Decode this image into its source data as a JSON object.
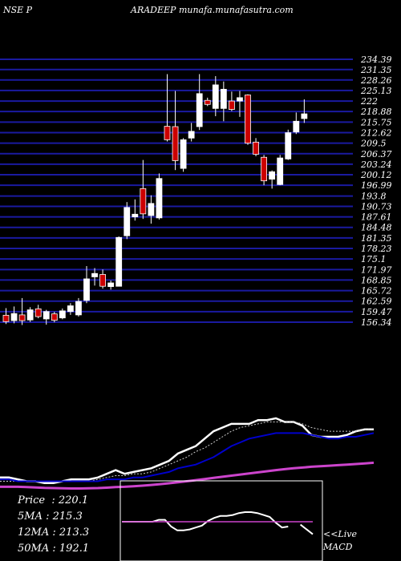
{
  "header": {
    "exchange": "NSE P",
    "site": "ARADEEP munafa.munafasutra.com"
  },
  "chart_data": [
    {
      "type": "candlestick",
      "title": "",
      "y_ticks": [
        234.39,
        231.35,
        228.26,
        225.13,
        222,
        218.88,
        215.75,
        212.62,
        209.5,
        206.37,
        203.24,
        200.12,
        196.99,
        193.8,
        190.73,
        187.61,
        184.48,
        181.35,
        178.23,
        175.1,
        171.97,
        168.85,
        165.72,
        162.59,
        159.47,
        156.34
      ],
      "y_tick_labels": [
        "234.39",
        "231.35",
        "228.26",
        "225.13",
        "222",
        "218.88",
        "215.75",
        "212.62",
        "209.5",
        "206.37",
        "203.24",
        "200.12",
        "196.99",
        "193.8",
        "190.73",
        "187.61",
        "184.48",
        "181.35",
        "178.23",
        "175.1",
        "171.97",
        "168.85",
        "165.72",
        "162.59",
        "159.47",
        "156.34"
      ],
      "ylim": [
        156.34,
        234.39
      ],
      "candles": [
        {
          "o": 158.4,
          "h": 160.5,
          "l": 155.8,
          "c": 156.5
        },
        {
          "o": 156.8,
          "h": 161.0,
          "l": 156.0,
          "c": 158.9
        },
        {
          "o": 158.5,
          "h": 163.5,
          "l": 155.5,
          "c": 156.8
        },
        {
          "o": 157.0,
          "h": 160.8,
          "l": 156.4,
          "c": 160.0
        },
        {
          "o": 160.3,
          "h": 161.5,
          "l": 157.5,
          "c": 158.0
        },
        {
          "o": 157.3,
          "h": 160.0,
          "l": 155.6,
          "c": 159.5
        },
        {
          "o": 158.8,
          "h": 159.4,
          "l": 156.3,
          "c": 156.9
        },
        {
          "o": 157.6,
          "h": 160.4,
          "l": 157.2,
          "c": 159.7
        },
        {
          "o": 159.5,
          "h": 162.0,
          "l": 158.5,
          "c": 161.2
        },
        {
          "o": 158.5,
          "h": 163.5,
          "l": 158.0,
          "c": 162.5
        },
        {
          "o": 162.8,
          "h": 173.0,
          "l": 162.0,
          "c": 169.2
        },
        {
          "o": 169.8,
          "h": 172.4,
          "l": 167.2,
          "c": 170.8
        },
        {
          "o": 170.5,
          "h": 172.0,
          "l": 166.3,
          "c": 167.0
        },
        {
          "o": 166.9,
          "h": 168.7,
          "l": 166.0,
          "c": 168.0
        },
        {
          "o": 167.0,
          "h": 181.8,
          "l": 167.0,
          "c": 181.5
        },
        {
          "o": 182.0,
          "h": 192.0,
          "l": 181.0,
          "c": 190.4
        },
        {
          "o": 187.6,
          "h": 192.8,
          "l": 186.5,
          "c": 188.4
        },
        {
          "o": 196.0,
          "h": 204.5,
          "l": 187.0,
          "c": 188.5
        },
        {
          "o": 188.0,
          "h": 194.0,
          "l": 185.6,
          "c": 191.6
        },
        {
          "o": 187.3,
          "h": 200.5,
          "l": 186.8,
          "c": 199.0
        },
        {
          "o": 214.5,
          "h": 230.0,
          "l": 210.0,
          "c": 210.5
        },
        {
          "o": 214.4,
          "h": 225.0,
          "l": 201.5,
          "c": 204.3
        },
        {
          "o": 202.0,
          "h": 211.0,
          "l": 201.0,
          "c": 210.5
        },
        {
          "o": 211.0,
          "h": 215.5,
          "l": 210.0,
          "c": 213.0
        },
        {
          "o": 214.4,
          "h": 230.0,
          "l": 213.4,
          "c": 224.2
        },
        {
          "o": 222.2,
          "h": 223.0,
          "l": 220.5,
          "c": 221.0
        },
        {
          "o": 219.8,
          "h": 229.4,
          "l": 217.5,
          "c": 226.8
        },
        {
          "o": 219.8,
          "h": 227.8,
          "l": 216.0,
          "c": 225.5
        },
        {
          "o": 222.0,
          "h": 224.8,
          "l": 219.0,
          "c": 219.5
        },
        {
          "o": 222.0,
          "h": 225.0,
          "l": 217.3,
          "c": 223.0
        },
        {
          "o": 223.8,
          "h": 224.0,
          "l": 209.0,
          "c": 209.5
        },
        {
          "o": 209.8,
          "h": 211.0,
          "l": 205.6,
          "c": 206.2
        },
        {
          "o": 205.3,
          "h": 206.0,
          "l": 197.0,
          "c": 198.3
        },
        {
          "o": 198.8,
          "h": 201.4,
          "l": 196.0,
          "c": 201.0
        },
        {
          "o": 197.2,
          "h": 206.0,
          "l": 197.0,
          "c": 205.1
        },
        {
          "o": 204.8,
          "h": 213.5,
          "l": 204.5,
          "c": 212.6
        },
        {
          "o": 212.8,
          "h": 218.6,
          "l": 212.2,
          "c": 216.0
        },
        {
          "o": 216.8,
          "h": 222.5,
          "l": 215.5,
          "c": 218.2
        }
      ]
    },
    {
      "type": "line",
      "title": "",
      "series": [
        {
          "color": "#ffffff",
          "values": [
            161,
            161,
            160,
            159,
            159,
            158,
            158,
            159,
            160,
            160,
            160,
            161,
            163,
            165,
            163,
            164,
            165,
            166,
            168,
            170,
            174,
            176,
            178,
            182,
            186,
            188,
            190,
            190,
            190,
            192,
            192,
            193,
            191,
            191,
            189,
            184,
            183,
            183,
            183,
            184,
            186,
            187,
            187
          ]
        },
        {
          "color": "#cccccc",
          "values": [
            159,
            159,
            159,
            159,
            159,
            159,
            159,
            159,
            159,
            159,
            159,
            160,
            161,
            162,
            162,
            163,
            163,
            164,
            166,
            168,
            170,
            172,
            175,
            177,
            180,
            183,
            186,
            188,
            189,
            190,
            191,
            191,
            191,
            191,
            190,
            188,
            187,
            186,
            186,
            186,
            186,
            187,
            187
          ]
        },
        {
          "color": "#0000cc",
          "values": [
            160,
            160,
            159,
            159,
            159,
            159,
            159,
            159,
            159,
            159,
            159,
            159,
            160,
            160,
            160,
            161,
            161,
            162,
            163,
            164,
            166,
            167,
            168,
            170,
            172,
            175,
            178,
            180,
            182,
            183,
            184,
            185,
            185,
            185,
            185,
            184,
            183,
            182,
            182,
            183,
            183,
            184,
            185
          ]
        },
        {
          "color": "#cc44cc",
          "values": [
            156,
            156,
            156,
            155.8,
            155.6,
            155.4,
            155.3,
            155.2,
            155.1,
            155.1,
            155.2,
            155.3,
            155.5,
            155.8,
            156.0,
            156.3,
            156.6,
            157.0,
            157.4,
            157.9,
            158.4,
            159.0,
            159.6,
            160.2,
            160.8,
            161.4,
            162.0,
            162.6,
            163.2,
            163.8,
            164.4,
            165.0,
            165.5,
            166.0,
            166.4,
            166.8,
            167.1,
            167.4,
            167.7,
            168.0,
            168.3,
            168.6,
            169.0
          ]
        }
      ]
    },
    {
      "type": "line",
      "title": "",
      "series": [
        {
          "color": "#ffffff",
          "values": [
            0,
            0,
            0,
            0,
            0,
            0,
            0.2,
            0.2,
            -0.5,
            -0.9,
            -0.9,
            -0.8,
            -0.6,
            -0.4,
            0.1,
            0.4,
            0.6,
            0.6,
            0.7,
            0.9,
            1.0,
            1.0,
            0.9,
            0.7,
            0.5,
            -0.1,
            -0.6,
            -0.5,
            null,
            -0.3,
            -0.8,
            -1.3
          ]
        },
        {
          "color": "#cc44cc",
          "values": [
            0,
            0,
            0,
            0,
            0,
            0,
            0,
            0,
            0,
            0,
            0,
            0,
            0,
            0,
            0,
            0,
            0,
            0,
            0,
            0,
            0,
            0,
            0,
            0,
            0,
            0,
            0,
            0,
            0,
            0,
            0,
            0
          ]
        }
      ]
    }
  ],
  "info": {
    "price_label": "Price",
    "price_value": "220.1",
    "ma5_label": "5MA",
    "ma5_value": "215.3",
    "ma12_label": "12MA",
    "ma12_value": "213.3",
    "ma50_label": "50MA",
    "ma50_value": "192.1"
  },
  "macd_labels": {
    "live": "<<Live",
    "name": "MACD"
  }
}
